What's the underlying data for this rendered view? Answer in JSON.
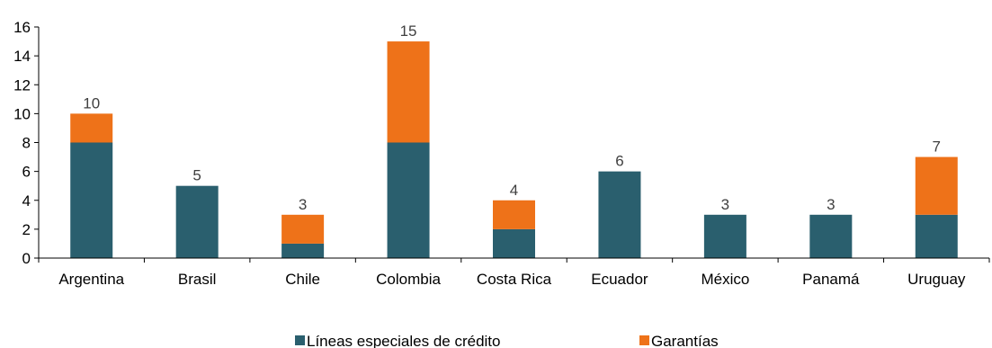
{
  "chart_data": {
    "type": "bar",
    "stacked": true,
    "categories": [
      "Argentina",
      "Brasil",
      "Chile",
      "Colombia",
      "Costa Rica",
      "Ecuador",
      "México",
      "Panamá",
      "Uruguay"
    ],
    "series": [
      {
        "name": "Líneas especiales de crédito",
        "color": "#2a5f6e",
        "values": [
          8,
          5,
          1,
          8,
          2,
          6,
          3,
          3,
          3
        ]
      },
      {
        "name": "Garantías",
        "color": "#ee7219",
        "values": [
          2,
          0,
          2,
          7,
          2,
          0,
          0,
          0,
          4
        ]
      }
    ],
    "totals": [
      "10",
      "5",
      "3",
      "15",
      "4",
      "6",
      "3",
      "3",
      "7"
    ],
    "yticks": [
      "0",
      "2",
      "4",
      "6",
      "8",
      "10",
      "12",
      "14",
      "16"
    ],
    "ylim": [
      0,
      16
    ],
    "grid": false,
    "legend_position": "bottom"
  }
}
